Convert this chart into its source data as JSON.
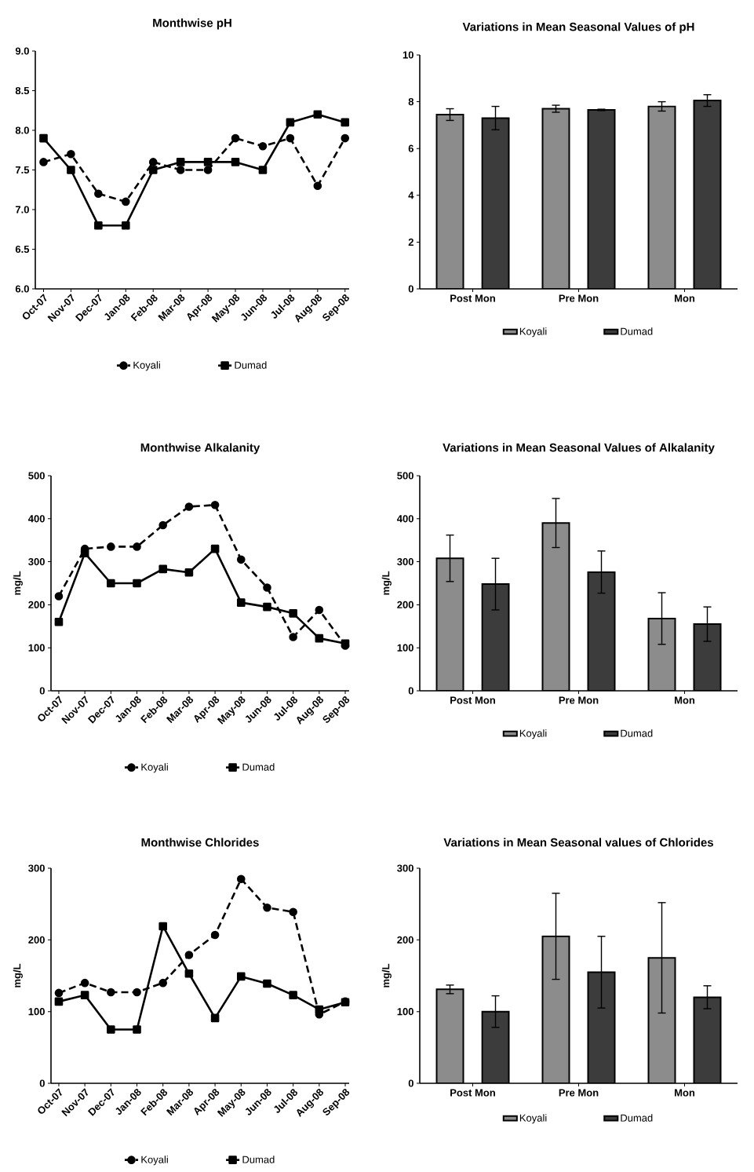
{
  "chart_data": [
    {
      "type": "line",
      "title": "Monthwise pH",
      "categories": [
        "Oct-07",
        "Nov-07",
        "Dec-07",
        "Jan-08",
        "Feb-08",
        "Mar-08",
        "Apr-08",
        "May-08",
        "Jun-08",
        "Jul-08",
        "Aug-08",
        "Sep-08"
      ],
      "series": [
        {
          "name": "Koyali",
          "color": "#000000",
          "line_style": "dashed",
          "marker": "circle",
          "values": [
            7.6,
            7.7,
            7.2,
            7.1,
            7.6,
            7.5,
            7.5,
            7.9,
            7.8,
            7.9,
            7.3,
            7.9
          ]
        },
        {
          "name": "Dumad",
          "color": "#000000",
          "line_style": "solid",
          "marker": "square",
          "values": [
            7.9,
            7.5,
            6.8,
            6.8,
            7.5,
            7.6,
            7.6,
            7.6,
            7.5,
            8.1,
            8.2,
            8.1
          ]
        }
      ],
      "ylim": [
        6,
        9
      ],
      "yticks": [
        {
          "value": 6,
          "label": "6.0"
        },
        {
          "value": 6.5,
          "label": "6.5"
        },
        {
          "value": 7,
          "label": "7.0"
        },
        {
          "value": 7.5,
          "label": "7.5"
        },
        {
          "value": 8,
          "label": "8.0"
        },
        {
          "value": 8.5,
          "label": "8.5"
        },
        {
          "value": 9,
          "label": "9.0"
        }
      ],
      "legend": "bottom"
    },
    {
      "type": "bar",
      "title": "Variations in Mean Seasonal Values of pH",
      "categories": [
        "Post Mon",
        "Pre Mon",
        "Mon"
      ],
      "series": [
        {
          "name": "Koyali",
          "color": "#8c8c8c",
          "values": [
            7.45,
            7.7,
            7.8
          ],
          "errors": [
            0.25,
            0.15,
            0.2
          ]
        },
        {
          "name": "Dumad",
          "color": "#3c3c3c",
          "values": [
            7.3,
            7.65,
            8.05
          ],
          "errors": [
            0.5,
            0.03,
            0.25
          ]
        }
      ],
      "ylim": [
        0,
        10
      ],
      "yticks": [
        0,
        2,
        4,
        6,
        8,
        10
      ],
      "legend": "bottom"
    },
    {
      "type": "line",
      "title": "Monthwise Alkalanity",
      "ylabel": "mg/L",
      "categories": [
        "Oct-07",
        "Nov-07",
        "Dec-07",
        "Jan-08",
        "Feb-08",
        "Mar-08",
        "Apr-08",
        "May-08",
        "Jun-08",
        "Jul-08",
        "Aug-08",
        "Sep-08"
      ],
      "series": [
        {
          "name": "Koyali",
          "color": "#000000",
          "line_style": "dashed",
          "marker": "circle",
          "values": [
            220,
            330,
            335,
            335,
            385,
            428,
            432,
            305,
            240,
            125,
            188,
            105
          ]
        },
        {
          "name": "Dumad",
          "color": "#000000",
          "line_style": "solid",
          "marker": "square",
          "values": [
            160,
            320,
            250,
            250,
            283,
            275,
            330,
            205,
            195,
            180,
            122,
            110
          ]
        }
      ],
      "ylim": [
        0,
        500
      ],
      "yticks": [
        0,
        100,
        200,
        300,
        400,
        500
      ],
      "legend": "bottom"
    },
    {
      "type": "bar",
      "title": "Variations in Mean Seasonal Values of Alkalanity",
      "ylabel": "mg/L",
      "categories": [
        "Post Mon",
        "Pre Mon",
        "Mon"
      ],
      "series": [
        {
          "name": "Koyali",
          "color": "#8c8c8c",
          "values": [
            308,
            390,
            168
          ],
          "errors": [
            54,
            57,
            60
          ]
        },
        {
          "name": "Dumad",
          "color": "#3c3c3c",
          "values": [
            248,
            276,
            155
          ],
          "errors": [
            60,
            49,
            40
          ]
        }
      ],
      "ylim": [
        0,
        500
      ],
      "yticks": [
        0,
        100,
        200,
        300,
        400,
        500
      ],
      "legend": "bottom"
    },
    {
      "type": "line",
      "title": "Monthwise Chlorides",
      "ylabel": "mg/L",
      "categories": [
        "Oct-07",
        "Nov-07",
        "Dec-07",
        "Jan-08",
        "Feb-08",
        "Mar-08",
        "Apr-08",
        "May-08",
        "Jun-08",
        "Jul-08",
        "Aug-08",
        "Sep-08"
      ],
      "series": [
        {
          "name": "Koyali",
          "color": "#000000",
          "line_style": "dashed",
          "marker": "circle",
          "values": [
            126,
            140,
            127,
            127,
            140,
            179,
            207,
            285,
            245,
            239,
            96,
            114
          ]
        },
        {
          "name": "Dumad",
          "color": "#000000",
          "line_style": "solid",
          "marker": "square",
          "values": [
            114,
            123,
            75,
            75,
            219,
            153,
            91,
            149,
            139,
            123,
            103,
            113
          ]
        }
      ],
      "ylim": [
        0,
        300
      ],
      "yticks": [
        0,
        100,
        200,
        300
      ],
      "legend": "bottom"
    },
    {
      "type": "bar",
      "title": "Variations in Mean Seasonal values of Chlorides",
      "ylabel": "mg/L",
      "categories": [
        "Post Mon",
        "Pre Mon",
        "Mon"
      ],
      "series": [
        {
          "name": "Koyali",
          "color": "#8c8c8c",
          "values": [
            131,
            205,
            175
          ],
          "errors": [
            6,
            60,
            77
          ]
        },
        {
          "name": "Dumad",
          "color": "#3c3c3c",
          "values": [
            100,
            155,
            120
          ],
          "errors": [
            22,
            50,
            16
          ]
        }
      ],
      "ylim": [
        0,
        300
      ],
      "yticks": [
        0,
        100,
        200,
        300
      ],
      "legend": "bottom"
    }
  ]
}
